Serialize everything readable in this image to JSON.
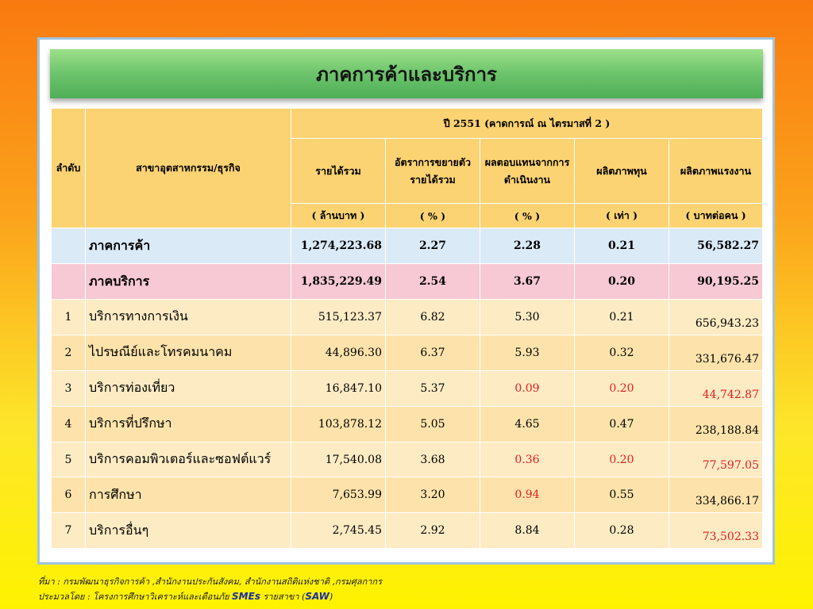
{
  "title": "ภาคการค้าและบริการ",
  "table": {
    "col_rank": "ลำดับ",
    "col_sector": "สาขาอุตสาหกรรม/ธุรกิจ",
    "year_header": "ปี 2551 (คาดการณ์ ณ ไตรมาสที่ 2 )",
    "metrics": [
      {
        "label": "รายได้รวม",
        "unit": "( ล้านบาท )"
      },
      {
        "label": "อัตราการขยายตัวรายได้รวม",
        "unit": "( % )"
      },
      {
        "label": "ผลตอบแทนจากการดำเนินงาน",
        "unit": "( % )"
      },
      {
        "label": "ผลิตภาพทุน",
        "unit": "( เท่า )"
      },
      {
        "label": "ผลิตภาพแรงงาน",
        "unit": "( บาทต่อคน )"
      }
    ],
    "rows": [
      {
        "rank": "",
        "name": "ภาคการค้า",
        "revenue": "1,274,223.68",
        "growth": "2.27",
        "return": "2.28",
        "capital": "0.21",
        "labor": "56,582.27",
        "style": "blue",
        "red": []
      },
      {
        "rank": "",
        "name": "ภาคบริการ",
        "revenue": "1,835,229.49",
        "growth": "2.54",
        "return": "3.67",
        "capital": "0.20",
        "labor": "90,195.25",
        "style": "pink",
        "red": []
      },
      {
        "rank": "1",
        "name": "บริการทางการเงิน",
        "revenue": "515,123.37",
        "growth": "6.82",
        "return": "5.30",
        "capital": "0.21",
        "labor": "656,943.23",
        "style": "odd",
        "red": []
      },
      {
        "rank": "2",
        "name": "ไปรษณีย์และโทรคมนาคม",
        "revenue": "44,896.30",
        "growth": "6.37",
        "return": "5.93",
        "capital": "0.32",
        "labor": "331,676.47",
        "style": "even",
        "red": []
      },
      {
        "rank": "3",
        "name": "บริการท่องเที่ยว",
        "revenue": "16,847.10",
        "growth": "5.37",
        "return": "0.09",
        "capital": "0.20",
        "labor": "44,742.87",
        "style": "odd",
        "red": [
          "return",
          "capital",
          "labor"
        ]
      },
      {
        "rank": "4",
        "name": "บริการที่ปรึกษา",
        "revenue": "103,878.12",
        "growth": "5.05",
        "return": "4.65",
        "capital": "0.47",
        "labor": "238,188.84",
        "style": "even",
        "red": []
      },
      {
        "rank": "5",
        "name": "บริการคอมพิวเตอร์และซอฟต์แวร์",
        "revenue": "17,540.08",
        "growth": "3.68",
        "return": "0.36",
        "capital": "0.20",
        "labor": "77,597.05",
        "style": "odd",
        "red": [
          "return",
          "capital",
          "labor"
        ]
      },
      {
        "rank": "6",
        "name": "การศึกษา",
        "revenue": "7,653.99",
        "growth": "3.20",
        "return": "0.94",
        "capital": "0.55",
        "labor": "334,866.17",
        "style": "even",
        "red": [
          "return"
        ]
      },
      {
        "rank": "7",
        "name": "บริการอื่นๆ",
        "revenue": "2,745.45",
        "growth": "2.92",
        "return": "8.84",
        "capital": "0.28",
        "labor": "73,502.33",
        "style": "odd",
        "red": [
          "labor"
        ]
      }
    ]
  },
  "footer": {
    "source": "ที่มา : กรมพัฒนาธุรกิจการค้า ,สำนักงานประกันสังคม, สำนักงานสถิติแห่งชาติ ,กรมศุลกากร",
    "compiled_prefix": "ประมวลโดย : โครงการศึกษาวิเคราะห์และเตือนภัย",
    "compiled_smes": "SMEs",
    "compiled_mid": "รายสาขา (",
    "compiled_saw": "SAW",
    "compiled_end": ")"
  }
}
